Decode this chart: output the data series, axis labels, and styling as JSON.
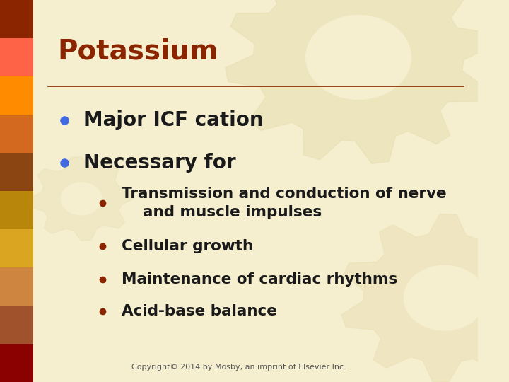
{
  "title": "Potassium",
  "title_color": "#8B2500",
  "title_fontsize": 28,
  "bg_color": "#F5EFD0",
  "line_color": "#8B2500",
  "bullet_color_level1": "#4169E1",
  "bullet_color_level2": "#8B2500",
  "text_color": "#1a1a1a",
  "level1_items": [
    "Major ICF cation",
    "Necessary for"
  ],
  "level2_items": [
    "Transmission and conduction of nerve\n    and muscle impulses",
    "Cellular growth",
    "Maintenance of cardiac rhythms",
    "Acid-base balance"
  ],
  "copyright": "Copyright© 2014 by Mosby, an imprint of Elsevier Inc.",
  "copyright_fontsize": 8,
  "gear_color": "#E8DDB0",
  "sidebar_colors": [
    "#8B0000",
    "#A0522D",
    "#CD853F",
    "#DAA520",
    "#B8860B",
    "#8B4513",
    "#D2691E",
    "#FF8C00",
    "#FF6347",
    "#8B2500"
  ]
}
